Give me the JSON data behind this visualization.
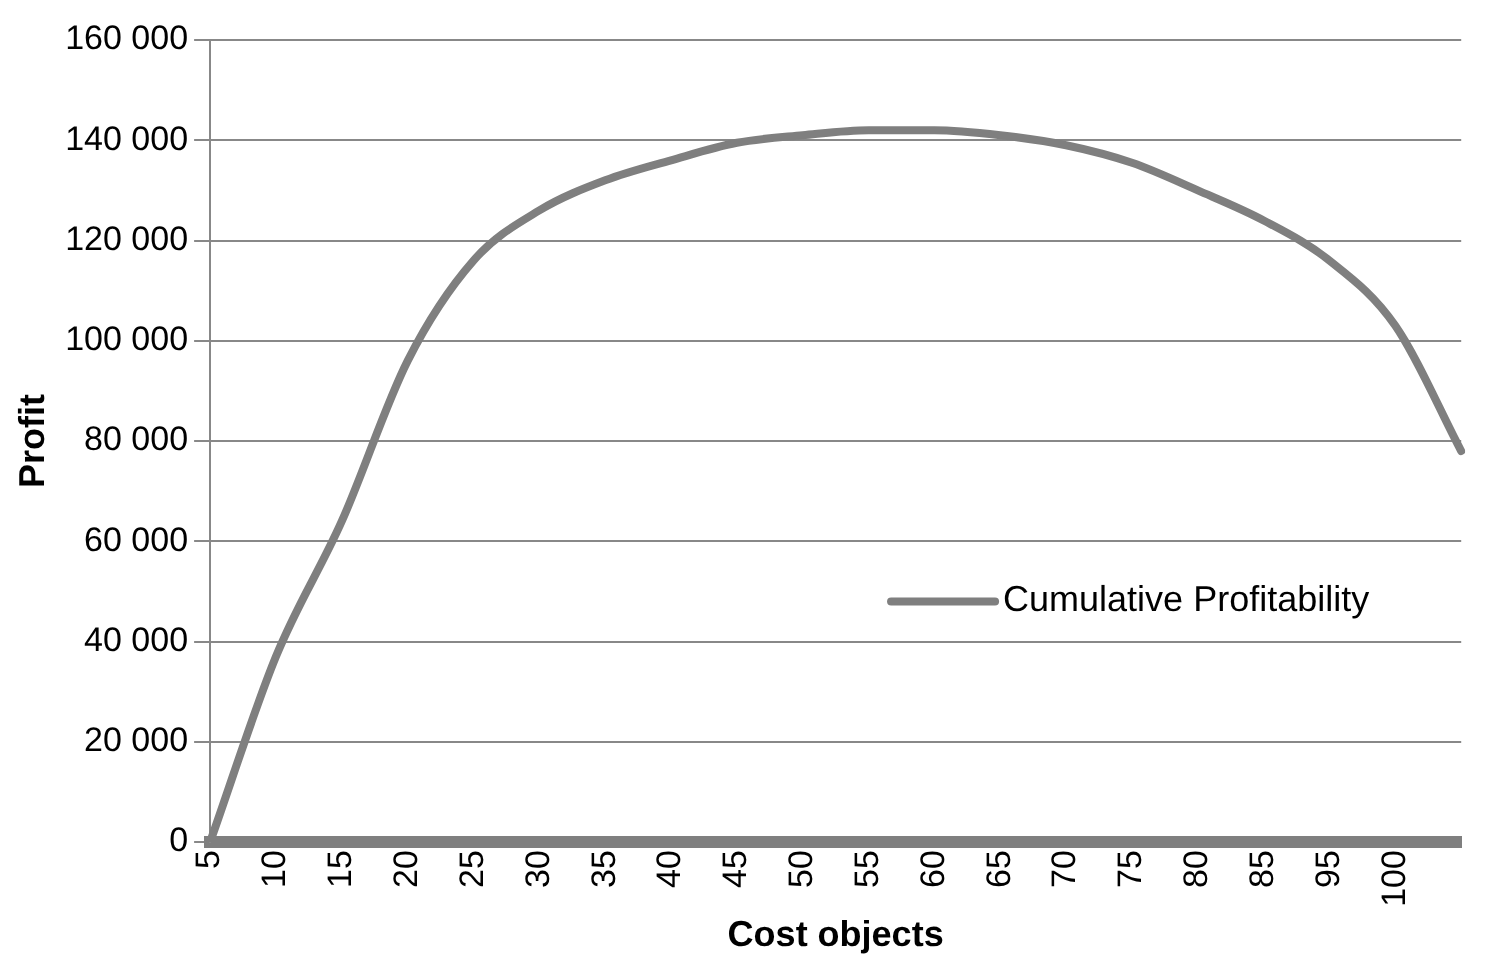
{
  "chart_data": {
    "type": "line",
    "xlabel": "Cost objects",
    "ylabel": "Profit",
    "categories": [
      "5",
      "10",
      "15",
      "20",
      "25",
      "30",
      "35",
      "40",
      "45",
      "50",
      "55",
      "60",
      "65",
      "70",
      "75",
      "80",
      "85",
      "95",
      "100",
      null
    ],
    "series": [
      {
        "name": "Cumulative Profitability",
        "color": "#7f7f7f",
        "values": [
          0,
          37000,
          64000,
          96000,
          116000,
          126000,
          132000,
          136000,
          139500,
          141000,
          142000,
          142000,
          141000,
          139000,
          135500,
          130000,
          124000,
          116000,
          103000,
          78000
        ]
      }
    ],
    "ylim": [
      0,
      160000
    ],
    "yticks": [
      {
        "value": 0,
        "label": "0"
      },
      {
        "value": 20000,
        "label": "20 000"
      },
      {
        "value": 40000,
        "label": "40 000"
      },
      {
        "value": 60000,
        "label": "60 000"
      },
      {
        "value": 80000,
        "label": "80 000"
      },
      {
        "value": 100000,
        "label": "100 000"
      },
      {
        "value": 120000,
        "label": "120 000"
      },
      {
        "value": 140000,
        "label": "140 000"
      },
      {
        "value": 160000,
        "label": "160 000"
      }
    ],
    "grid": "y",
    "legend": "right",
    "marker": "none",
    "line_style": "solid"
  }
}
